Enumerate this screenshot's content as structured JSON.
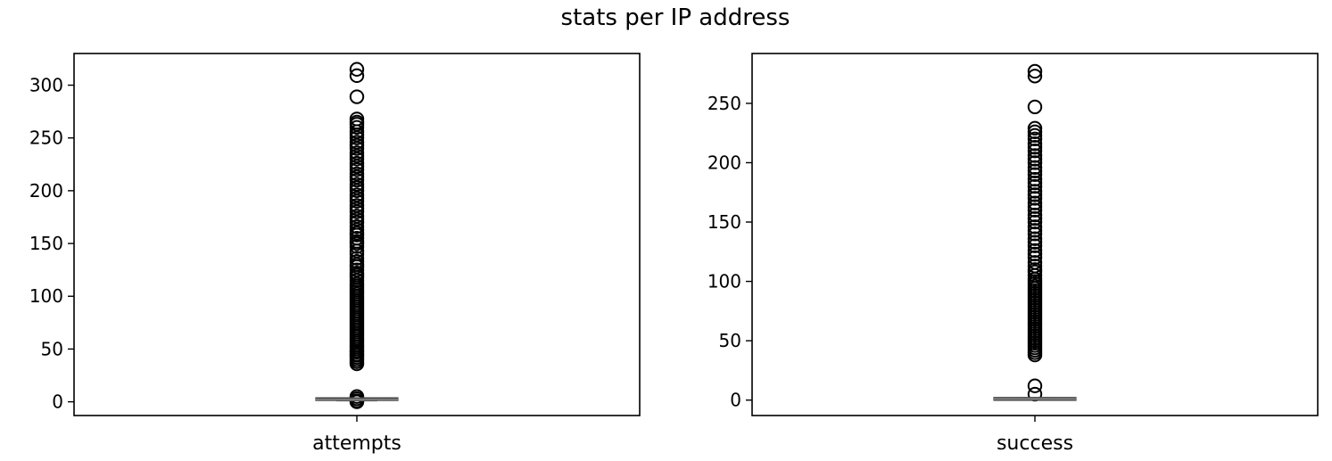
{
  "title": "stats per IP address",
  "colors": {
    "outlier_edge": "#000000",
    "box": "#4c4c4c",
    "median": "#808080",
    "axes": "#000000",
    "background": "#ffffff"
  },
  "chart_data": [
    {
      "type": "box",
      "title": "",
      "xlabel": "",
      "ylabel": "",
      "categories": [
        "attempts"
      ],
      "ylim": [
        -13,
        330
      ],
      "yticks": [
        0,
        50,
        100,
        150,
        200,
        250,
        300
      ],
      "ytick_labels": [
        "0",
        "50",
        "100",
        "150",
        "200",
        "250",
        "300"
      ],
      "grid": false,
      "box": {
        "whisker_low": 1,
        "q1": 2,
        "median": 2,
        "q3": 3,
        "whisker_high": 3
      },
      "outliers": [
        0,
        1,
        3,
        5,
        36,
        38,
        40,
        42,
        44,
        45,
        47,
        48,
        50,
        52,
        54,
        56,
        58,
        60,
        62,
        64,
        66,
        68,
        70,
        72,
        74,
        76,
        78,
        80,
        82,
        84,
        86,
        88,
        90,
        92,
        94,
        96,
        98,
        100,
        102,
        104,
        106,
        108,
        110,
        112,
        115,
        118,
        120,
        122,
        125,
        128,
        130,
        133,
        136,
        140,
        143,
        147,
        150,
        152,
        155,
        158,
        160,
        163,
        166,
        170,
        173,
        176,
        180,
        183,
        186,
        190,
        193,
        196,
        200,
        203,
        206,
        210,
        213,
        216,
        220,
        223,
        226,
        230,
        233,
        236,
        240,
        243,
        246,
        250,
        253,
        256,
        260,
        263,
        265,
        268,
        289,
        309,
        315
      ]
    },
    {
      "type": "box",
      "title": "",
      "xlabel": "",
      "ylabel": "",
      "categories": [
        "success"
      ],
      "ylim": [
        -13,
        292
      ],
      "yticks": [
        0,
        50,
        100,
        150,
        200,
        250
      ],
      "ytick_labels": [
        "0",
        "50",
        "100",
        "150",
        "200",
        "250"
      ],
      "grid": false,
      "box": {
        "whisker_low": 0,
        "q1": 0.5,
        "median": 1,
        "q3": 1.5,
        "whisker_high": 2
      },
      "outliers": [
        5,
        12,
        38,
        40,
        42,
        44,
        46,
        48,
        50,
        52,
        54,
        56,
        58,
        60,
        62,
        64,
        66,
        68,
        70,
        72,
        74,
        76,
        78,
        80,
        82,
        84,
        86,
        88,
        90,
        92,
        94,
        96,
        98,
        100,
        102,
        105,
        108,
        110,
        113,
        116,
        120,
        123,
        126,
        130,
        133,
        136,
        140,
        143,
        146,
        150,
        153,
        156,
        160,
        163,
        166,
        170,
        173,
        176,
        180,
        183,
        186,
        190,
        193,
        196,
        200,
        203,
        206,
        210,
        213,
        216,
        220,
        223,
        226,
        229,
        247,
        273,
        277
      ]
    }
  ]
}
